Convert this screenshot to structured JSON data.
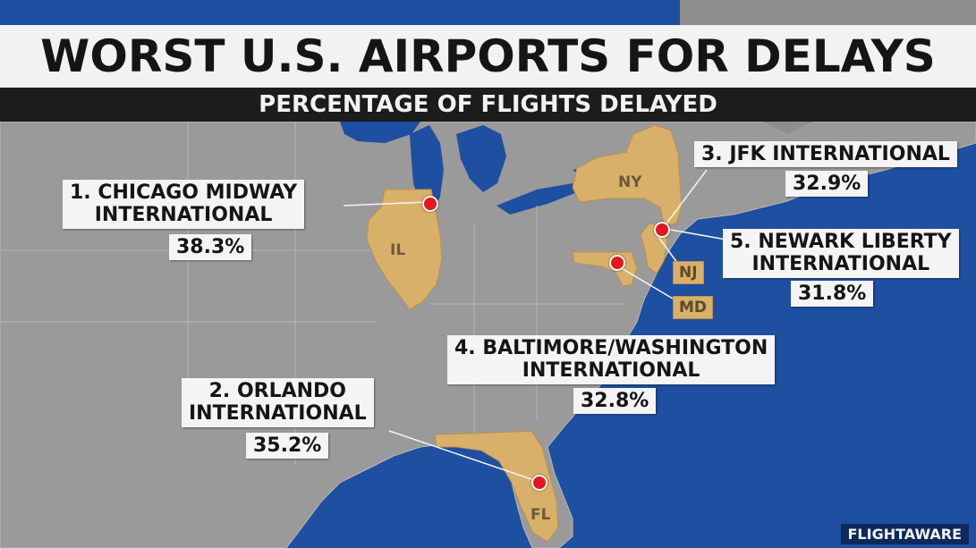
{
  "title": "WORST U.S. AIRPORTS FOR DELAYS",
  "subtitle": "PERCENTAGE OF FLIGHTS DELAYED",
  "source": "FLIGHTAWARE",
  "colors": {
    "water": "#1e4fa0",
    "land": "#9a9a9a",
    "highlight_state": "#d8b06a",
    "pin": "#e0191f"
  },
  "airports": [
    {
      "rank_name_line1": "1. CHICAGO MIDWAY",
      "rank_name_line2": "INTERNATIONAL",
      "pct": "38.3%"
    },
    {
      "rank_name_line1": "2. ORLANDO",
      "rank_name_line2": "INTERNATIONAL",
      "pct": "35.2%"
    },
    {
      "rank_name_line1": "3. JFK INTERNATIONAL",
      "rank_name_line2": "",
      "pct": "32.9%"
    },
    {
      "rank_name_line1": "4. BALTIMORE/WASHINGTON",
      "rank_name_line2": "INTERNATIONAL",
      "pct": "32.8%"
    },
    {
      "rank_name_line1": "5. NEWARK LIBERTY",
      "rank_name_line2": "INTERNATIONAL",
      "pct": "31.8%"
    }
  ],
  "states": {
    "il": "IL",
    "ny": "NY",
    "nj": "NJ",
    "md": "MD",
    "fl": "FL"
  }
}
